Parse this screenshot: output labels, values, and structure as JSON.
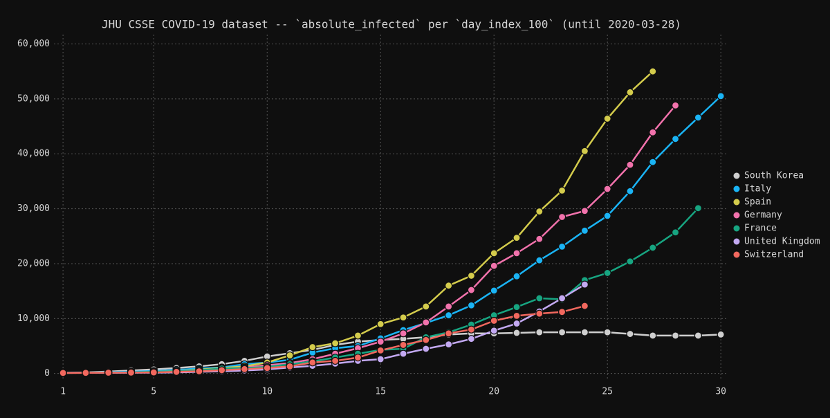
{
  "chart_data": {
    "type": "line",
    "title": "JHU CSSE COVID-19 dataset -- `absolute_infected` per `day_index_100` (until 2020-03-28)",
    "x": [
      1,
      2,
      3,
      4,
      5,
      6,
      7,
      8,
      9,
      10,
      11,
      12,
      13,
      14,
      15,
      16,
      17,
      18,
      19,
      20,
      21,
      22,
      23,
      24,
      25,
      26,
      27,
      28,
      29,
      30
    ],
    "xlim": [
      0.6,
      30.3
    ],
    "xticks": [
      1,
      5,
      10,
      15,
      20,
      25,
      30
    ],
    "ylim": [
      -1300,
      61700
    ],
    "yticks": [
      0,
      {
        "value": 10000,
        "label": "10,000"
      },
      {
        "value": 20000,
        "label": "20,000"
      },
      {
        "value": 30000,
        "label": "30,000"
      },
      {
        "value": 40000,
        "label": "40,000"
      },
      {
        "value": 50000,
        "label": "50,000"
      },
      {
        "value": 60000,
        "label": "60,000"
      }
    ],
    "grid": true,
    "legend": "right",
    "series": [
      {
        "name": "South Korea",
        "color": "#cfcfcf",
        "values": [
          100,
          200,
          350,
          550,
          750,
          1000,
          1300,
          1700,
          2300,
          3100,
          3700,
          4300,
          5200,
          5800,
          6100,
          6300,
          6600,
          7100,
          7300,
          7300,
          7400,
          7500,
          7500,
          7500,
          7500,
          7200,
          6900,
          6900,
          6900,
          7100
        ]
      },
      {
        "name": "Italy",
        "color": "#1ab4f5",
        "values": [
          150,
          150,
          230,
          320,
          450,
          650,
          900,
          1100,
          1700,
          2000,
          2500,
          3800,
          4600,
          5000,
          6400,
          7900,
          9200,
          10600,
          12400,
          15100,
          17700,
          20600,
          23100,
          26000,
          28700,
          33200,
          38500,
          42700,
          46600,
          50500
        ]
      },
      {
        "name": "Spain",
        "color": "#d4cc4c",
        "values": [
          100,
          120,
          150,
          200,
          300,
          450,
          700,
          1000,
          1300,
          2000,
          3300,
          4800,
          5500,
          6900,
          9000,
          10200,
          12200,
          16000,
          17800,
          21900,
          24700,
          29500,
          33300,
          40500,
          46400,
          51200,
          55000,
          null,
          null,
          null
        ]
      },
      {
        "name": "Germany",
        "color": "#f272ac",
        "values": [
          110,
          130,
          150,
          180,
          250,
          400,
          600,
          800,
          1100,
          1500,
          1900,
          2600,
          3600,
          4600,
          5800,
          7300,
          9300,
          12200,
          15200,
          19600,
          21900,
          24500,
          28500,
          29600,
          33600,
          38000,
          43900,
          48800,
          null,
          null
        ]
      },
      {
        "name": "France",
        "color": "#17a581",
        "values": [
          100,
          130,
          180,
          200,
          300,
          400,
          600,
          900,
          1000,
          1200,
          1700,
          2200,
          2900,
          3600,
          4300,
          4500,
          6600,
          7500,
          8900,
          10600,
          12100,
          13700,
          13500,
          17000,
          18300,
          20400,
          22900,
          25700,
          30100,
          null
        ]
      },
      {
        "name": "United Kingdom",
        "color": "#c3a9f2",
        "values": [
          100,
          120,
          130,
          140,
          150,
          200,
          300,
          400,
          550,
          750,
          1100,
          1400,
          1800,
          2300,
          2600,
          3600,
          4500,
          5300,
          6300,
          7800,
          9100,
          11300,
          13700,
          16200,
          null,
          null,
          null,
          null,
          null,
          null
        ]
      },
      {
        "name": "Switzerland",
        "color": "#f2685e",
        "values": [
          100,
          120,
          150,
          170,
          200,
          300,
          400,
          600,
          800,
          1000,
          1300,
          2000,
          2300,
          2900,
          4200,
          5200,
          6100,
          7300,
          8000,
          9600,
          10500,
          10900,
          11200,
          12300,
          null,
          null,
          null,
          null,
          null,
          null
        ]
      }
    ]
  }
}
